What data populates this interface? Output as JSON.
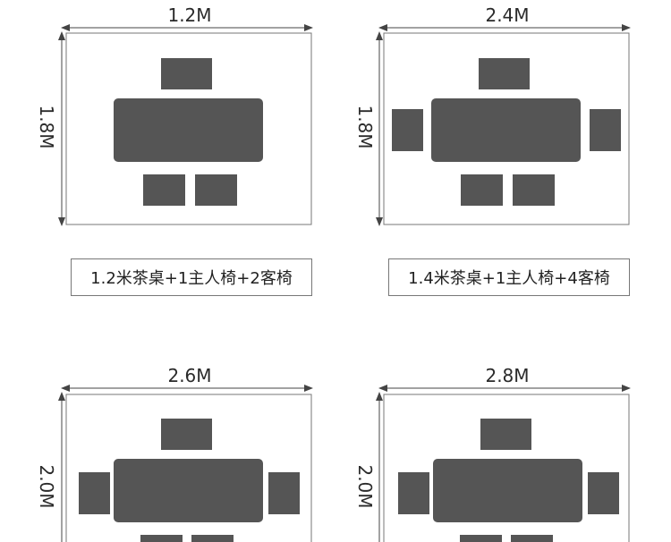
{
  "colors": {
    "furniture": "#555555",
    "room_border": "#777777",
    "dimension_line": "#444444"
  },
  "layouts": [
    {
      "width_label": "1.2M",
      "height_label": "1.8M",
      "caption": "1.2米茶桌+1主人椅+2客椅",
      "host_chairs": 1,
      "side_chairs": 0,
      "bottom_chairs": 2
    },
    {
      "width_label": "2.4M",
      "height_label": "1.8M",
      "caption": "1.4米茶桌+1主人椅+4客椅",
      "host_chairs": 1,
      "side_chairs": 2,
      "bottom_chairs": 2
    },
    {
      "width_label": "2.6M",
      "height_label": "2.0M",
      "caption": "",
      "host_chairs": 1,
      "side_chairs": 2,
      "bottom_chairs": 2
    },
    {
      "width_label": "2.8M",
      "height_label": "2.0M",
      "caption": "",
      "host_chairs": 1,
      "side_chairs": 2,
      "bottom_chairs": 2
    }
  ]
}
